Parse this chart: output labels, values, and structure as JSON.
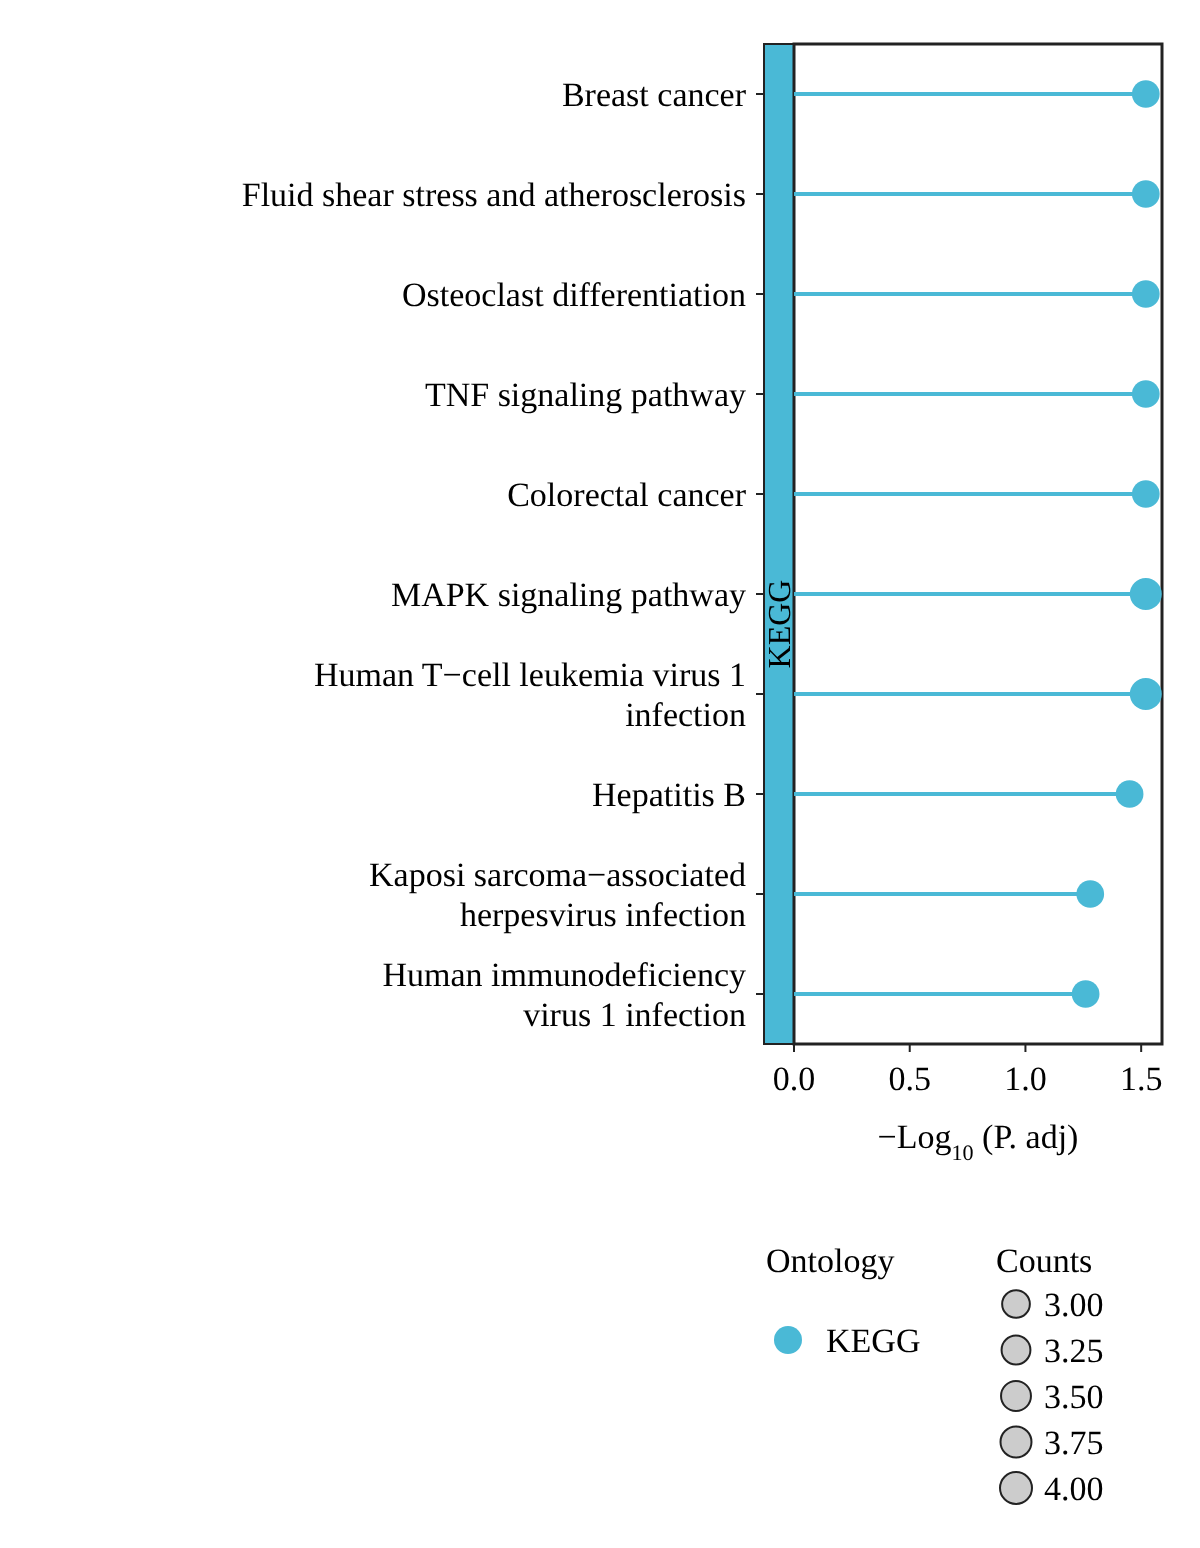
{
  "chart_data": {
    "type": "lollipop",
    "orientation": "horizontal",
    "categories": [
      "Breast cancer",
      "Fluid shear stress and atherosclerosis",
      "Osteoclast differentiation",
      "TNF signaling pathway",
      "Colorectal cancer",
      "MAPK signaling pathway",
      "Human T−cell leukemia virus 1\ninfection",
      "Hepatitis B",
      "Kaposi sarcoma−associated\nherpesvirus infection",
      "Human immunodeficiency\nvirus 1 infection"
    ],
    "series": [
      {
        "name": "KEGG",
        "color": "#4ab9d6",
        "values": [
          1.52,
          1.52,
          1.52,
          1.52,
          1.52,
          1.52,
          1.52,
          1.45,
          1.28,
          1.26
        ],
        "sizes": [
          3,
          3,
          3,
          3,
          3,
          4,
          4,
          3,
          3,
          3
        ]
      }
    ],
    "size_legend": [
      {
        "value": 3,
        "label": "3.00"
      },
      {
        "value": 3.25,
        "label": "3.25"
      },
      {
        "value": 3.5,
        "label": "3.50"
      },
      {
        "value": 3.75,
        "label": "3.75"
      },
      {
        "value": 4,
        "label": "4.00"
      }
    ],
    "xlim": [
      0,
      1.59
    ],
    "xticks": [
      {
        "value": 0,
        "label": "0.0"
      },
      {
        "value": 0.5,
        "label": "0.5"
      },
      {
        "value": 1,
        "label": "1.0"
      },
      {
        "value": 1.5,
        "label": "1.5"
      }
    ],
    "xlabel": "−Log$_{10}$ (P. adj)",
    "legend_title": "Ontology",
    "legend": "bottom",
    "annotations": [
      "Counts"
    ]
  }
}
